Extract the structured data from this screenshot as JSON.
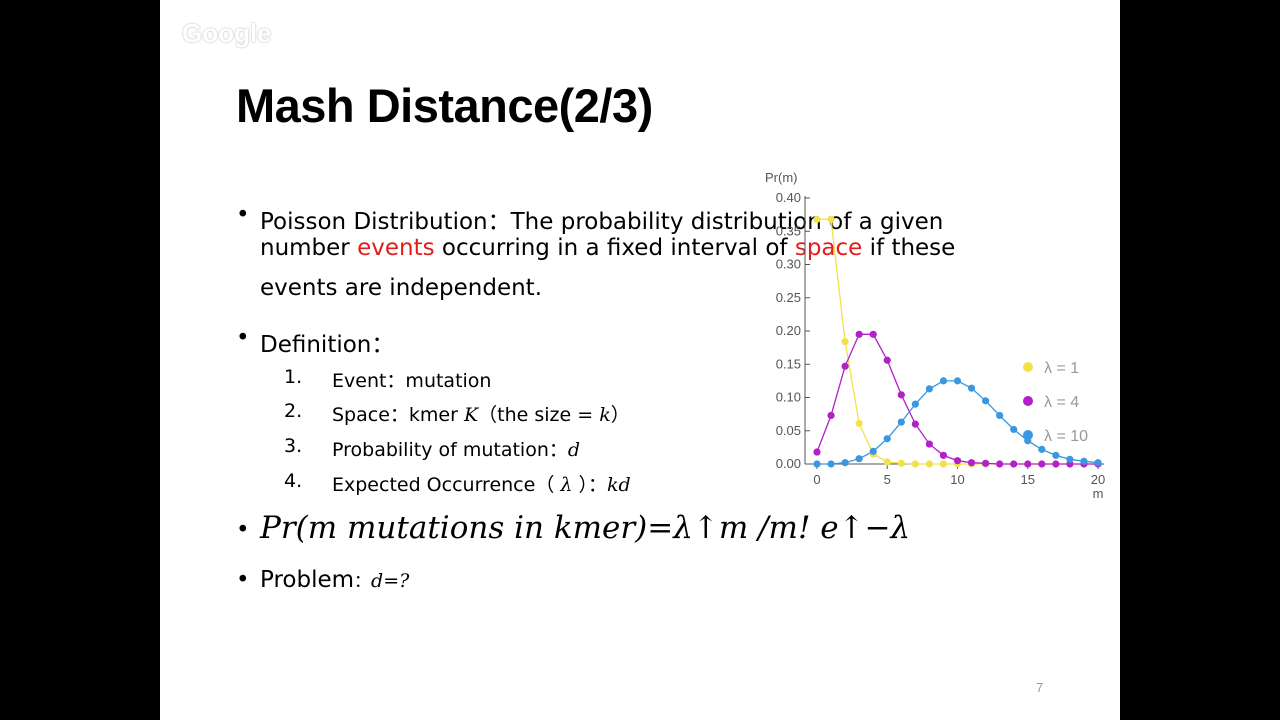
{
  "watermark": "Google",
  "title": "Mash Distance(2/3)",
  "bullets": {
    "poisson": {
      "label": "Poisson Distribution",
      "sep": "：",
      "line1_rest": "The probability distribution of a given",
      "line2_a": "number ",
      "line2_red1": "events",
      "line2_b": " occurring in a fixed interval of ",
      "line2_red2": "space",
      "line2_c": " if these",
      "line3": "events are independent."
    },
    "definition": {
      "label": "Definition",
      "sep": "："
    },
    "formula": "Pr(m mutations in kmer)=λ↑m /m! e↑−λ",
    "problem": {
      "label": "Problem",
      "sep": "：",
      "value": "d=?"
    }
  },
  "definition_items": [
    {
      "num": "1.",
      "text": "Event：mutation",
      "math": ""
    },
    {
      "num": "2.",
      "text": "Space：kmer ",
      "math": "K",
      "text2": "（the size = ",
      "math2": "k",
      "text3": "）"
    },
    {
      "num": "3.",
      "text": "Probability of mutation：",
      "math": "d"
    },
    {
      "num": "4.",
      "text": "Expected Occurrence（ ",
      "math": "λ",
      "text2": " ）：",
      "math2": "kd"
    }
  ],
  "page_number": "7",
  "chart_data": {
    "type": "line",
    "ylabel": "Pr(m)",
    "xlabel": "m",
    "xlim": [
      0,
      20
    ],
    "ylim": [
      0,
      0.4
    ],
    "xticks": [
      0,
      5,
      10,
      15,
      20
    ],
    "yticks": [
      "0.00",
      "0.05",
      "0.10",
      "0.15",
      "0.20",
      "0.25",
      "0.30",
      "0.35",
      "0.40"
    ],
    "legend_position": "top-right",
    "x": [
      0,
      1,
      2,
      3,
      4,
      5,
      6,
      7,
      8,
      9,
      10,
      11,
      12,
      13,
      14,
      15,
      16,
      17,
      18,
      19,
      20
    ],
    "series": [
      {
        "name": "λ = 1",
        "color": "#f2e14c",
        "values": [
          0.368,
          0.368,
          0.184,
          0.061,
          0.015,
          0.003,
          0.001,
          0,
          0,
          0,
          0,
          0,
          0,
          0,
          0,
          0,
          0,
          0,
          0,
          0,
          0
        ]
      },
      {
        "name": "λ = 4",
        "color": "#b31fc9",
        "values": [
          0.018,
          0.073,
          0.147,
          0.195,
          0.195,
          0.156,
          0.104,
          0.06,
          0.03,
          0.013,
          0.005,
          0.002,
          0.001,
          0,
          0,
          0,
          0,
          0,
          0,
          0,
          0
        ]
      },
      {
        "name": "λ = 10",
        "color": "#3a98e0",
        "values": [
          0.0,
          0.0,
          0.002,
          0.008,
          0.019,
          0.038,
          0.063,
          0.09,
          0.113,
          0.125,
          0.125,
          0.114,
          0.095,
          0.073,
          0.052,
          0.035,
          0.022,
          0.013,
          0.007,
          0.004,
          0.002
        ]
      }
    ]
  }
}
